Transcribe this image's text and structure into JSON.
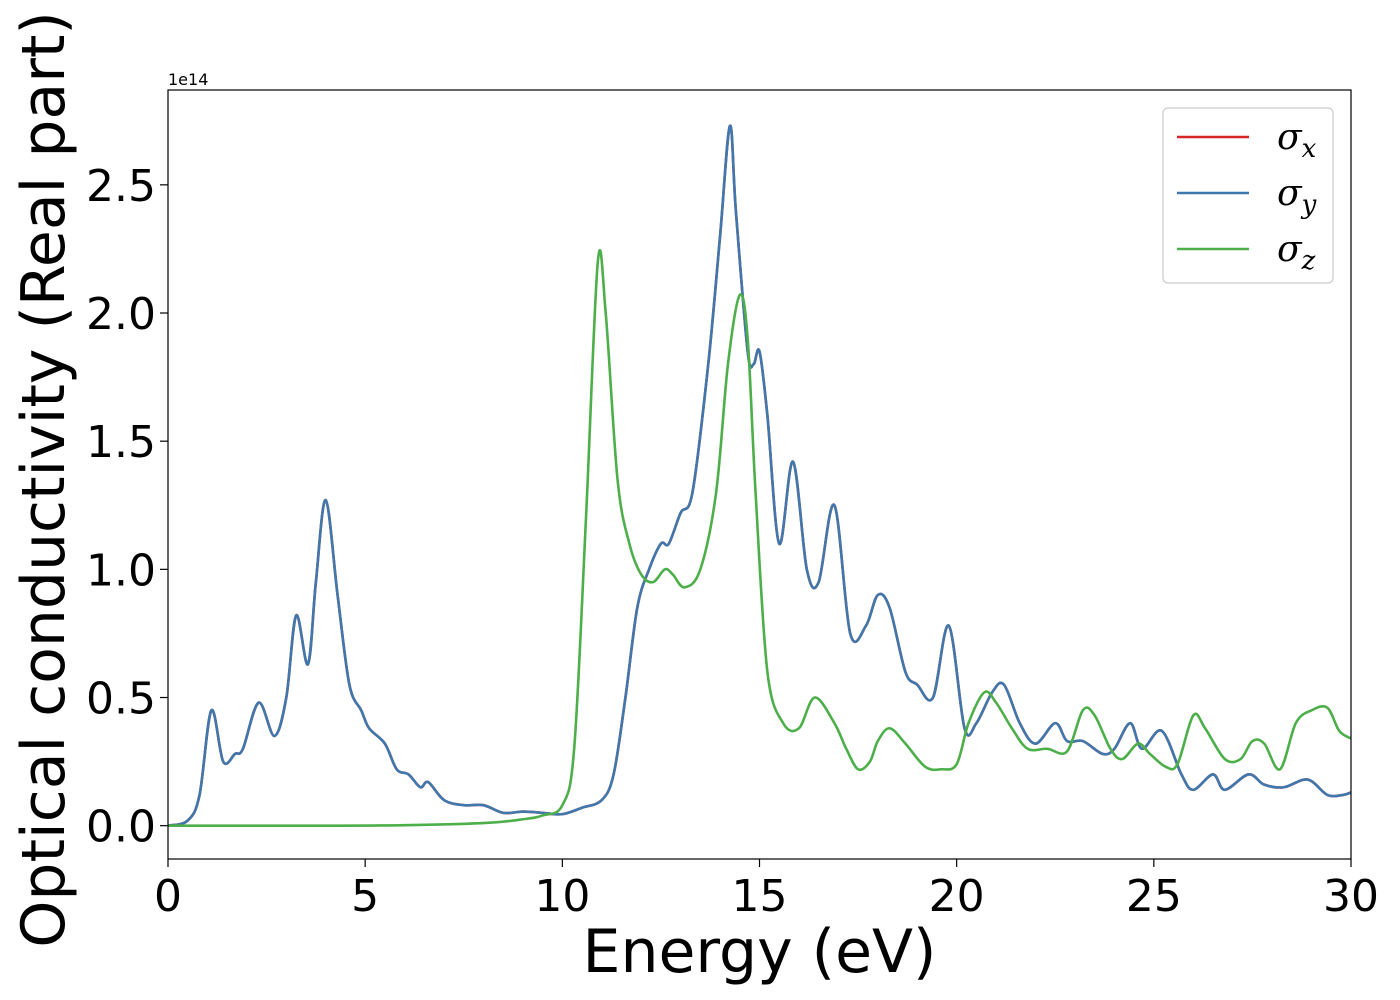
{
  "chart_data": {
    "type": "line",
    "title": "",
    "xlabel": "Energy (eV)",
    "ylabel": "Optical conductivity (Real part)",
    "y_offset_text": "1e14",
    "xlim": [
      0,
      30
    ],
    "ylim": [
      -0.13,
      2.87
    ],
    "xticks": [
      0,
      5,
      10,
      15,
      20,
      25,
      30
    ],
    "xtick_labels": [
      "0",
      "5",
      "10",
      "15",
      "20",
      "25",
      "30"
    ],
    "yticks": [
      0.0,
      0.5,
      1.0,
      1.5,
      2.0,
      2.5
    ],
    "ytick_labels": [
      "0.0",
      "0.5",
      "1.0",
      "1.5",
      "2.0",
      "2.5"
    ],
    "grid": false,
    "legend_position": "top-right",
    "series": [
      {
        "name": "σx",
        "legend_base": "σ",
        "legend_sub": "x",
        "color": "#d62728",
        "x": [
          0,
          0.5,
          0.8,
          1.1,
          1.4,
          1.7,
          1.9,
          2.3,
          2.7,
          3.0,
          3.25,
          3.55,
          3.75,
          4.0,
          4.3,
          4.6,
          4.9,
          5.1,
          5.5,
          5.8,
          6.1,
          6.4,
          6.6,
          7.0,
          7.5,
          8.0,
          8.5,
          9.0,
          9.5,
          10.0,
          10.5,
          11.0,
          11.3,
          11.6,
          11.9,
          12.2,
          12.5,
          12.7,
          13.0,
          13.3,
          13.7,
          14.0,
          14.25,
          14.4,
          14.7,
          14.85,
          15.0,
          15.2,
          15.5,
          15.85,
          16.2,
          16.5,
          16.9,
          17.3,
          17.7,
          18.0,
          18.3,
          18.7,
          19.0,
          19.4,
          19.8,
          20.2,
          20.5,
          20.9,
          21.2,
          21.6,
          22.0,
          22.5,
          22.8,
          23.2,
          23.7,
          24.0,
          24.4,
          24.7,
          25.2,
          25.7,
          26.0,
          26.5,
          26.8,
          27.4,
          27.8,
          28.3,
          28.9,
          29.4,
          29.8,
          30.0
        ],
        "y": [
          0.0,
          0.02,
          0.12,
          0.45,
          0.25,
          0.28,
          0.3,
          0.48,
          0.35,
          0.5,
          0.82,
          0.63,
          0.95,
          1.27,
          0.9,
          0.55,
          0.45,
          0.38,
          0.32,
          0.22,
          0.2,
          0.15,
          0.17,
          0.1,
          0.08,
          0.08,
          0.05,
          0.055,
          0.05,
          0.045,
          0.07,
          0.1,
          0.2,
          0.5,
          0.85,
          1.0,
          1.1,
          1.1,
          1.22,
          1.3,
          1.8,
          2.3,
          2.73,
          2.4,
          1.85,
          1.8,
          1.85,
          1.6,
          1.1,
          1.42,
          1.0,
          0.95,
          1.25,
          0.75,
          0.78,
          0.9,
          0.85,
          0.6,
          0.55,
          0.5,
          0.78,
          0.38,
          0.4,
          0.52,
          0.55,
          0.4,
          0.32,
          0.4,
          0.33,
          0.33,
          0.28,
          0.3,
          0.4,
          0.3,
          0.37,
          0.2,
          0.14,
          0.2,
          0.14,
          0.2,
          0.16,
          0.15,
          0.18,
          0.12,
          0.12,
          0.13
        ]
      },
      {
        "name": "σy",
        "legend_base": "σ",
        "legend_sub": "y",
        "color": "#3f78ac",
        "x": [
          0,
          0.5,
          0.8,
          1.1,
          1.4,
          1.7,
          1.9,
          2.3,
          2.7,
          3.0,
          3.25,
          3.55,
          3.75,
          4.0,
          4.3,
          4.6,
          4.9,
          5.1,
          5.5,
          5.8,
          6.1,
          6.4,
          6.6,
          7.0,
          7.5,
          8.0,
          8.5,
          9.0,
          9.5,
          10.0,
          10.5,
          11.0,
          11.3,
          11.6,
          11.9,
          12.2,
          12.5,
          12.7,
          13.0,
          13.3,
          13.7,
          14.0,
          14.25,
          14.4,
          14.7,
          14.85,
          15.0,
          15.2,
          15.5,
          15.85,
          16.2,
          16.5,
          16.9,
          17.3,
          17.7,
          18.0,
          18.3,
          18.7,
          19.0,
          19.4,
          19.8,
          20.2,
          20.5,
          20.9,
          21.2,
          21.6,
          22.0,
          22.5,
          22.8,
          23.2,
          23.7,
          24.0,
          24.4,
          24.7,
          25.2,
          25.7,
          26.0,
          26.5,
          26.8,
          27.4,
          27.8,
          28.3,
          28.9,
          29.4,
          29.8,
          30.0
        ],
        "y": [
          0.0,
          0.02,
          0.12,
          0.45,
          0.25,
          0.28,
          0.3,
          0.48,
          0.35,
          0.5,
          0.82,
          0.63,
          0.95,
          1.27,
          0.9,
          0.55,
          0.45,
          0.38,
          0.32,
          0.22,
          0.2,
          0.15,
          0.17,
          0.1,
          0.08,
          0.08,
          0.05,
          0.055,
          0.05,
          0.045,
          0.07,
          0.1,
          0.2,
          0.5,
          0.85,
          1.0,
          1.1,
          1.1,
          1.22,
          1.3,
          1.8,
          2.3,
          2.73,
          2.4,
          1.85,
          1.8,
          1.85,
          1.6,
          1.1,
          1.42,
          1.0,
          0.95,
          1.25,
          0.75,
          0.78,
          0.9,
          0.85,
          0.6,
          0.55,
          0.5,
          0.78,
          0.38,
          0.4,
          0.52,
          0.55,
          0.4,
          0.32,
          0.4,
          0.33,
          0.33,
          0.28,
          0.3,
          0.4,
          0.3,
          0.37,
          0.2,
          0.14,
          0.2,
          0.14,
          0.2,
          0.16,
          0.15,
          0.18,
          0.12,
          0.12,
          0.13
        ]
      },
      {
        "name": "σz",
        "legend_base": "σ",
        "legend_sub": "z",
        "color": "#4daf4a",
        "x": [
          0,
          2,
          4,
          6,
          8,
          9,
          9.5,
          10.0,
          10.3,
          10.6,
          10.9,
          11.1,
          11.4,
          11.7,
          12.0,
          12.3,
          12.6,
          12.8,
          13.1,
          13.5,
          13.9,
          14.2,
          14.5,
          14.7,
          14.9,
          15.2,
          15.6,
          16.0,
          16.4,
          16.9,
          17.2,
          17.5,
          17.8,
          18.0,
          18.3,
          18.7,
          19.2,
          19.6,
          20.0,
          20.3,
          20.7,
          21.0,
          21.4,
          21.8,
          22.3,
          22.8,
          23.2,
          23.5,
          23.9,
          24.2,
          24.6,
          24.9,
          25.3,
          25.6,
          26.0,
          26.3,
          26.8,
          27.2,
          27.5,
          27.8,
          28.2,
          28.6,
          29.0,
          29.4,
          29.7,
          30.0
        ],
        "y": [
          0.0,
          0.0,
          0.0,
          0.002,
          0.01,
          0.025,
          0.04,
          0.08,
          0.3,
          1.2,
          2.2,
          2.0,
          1.35,
          1.1,
          0.98,
          0.95,
          1.0,
          0.98,
          0.93,
          1.0,
          1.3,
          1.8,
          2.07,
          1.9,
          1.3,
          0.6,
          0.4,
          0.38,
          0.5,
          0.4,
          0.3,
          0.22,
          0.25,
          0.33,
          0.38,
          0.32,
          0.23,
          0.22,
          0.24,
          0.4,
          0.52,
          0.48,
          0.38,
          0.3,
          0.3,
          0.29,
          0.45,
          0.43,
          0.3,
          0.26,
          0.32,
          0.28,
          0.23,
          0.24,
          0.43,
          0.38,
          0.26,
          0.26,
          0.33,
          0.32,
          0.22,
          0.4,
          0.45,
          0.46,
          0.37,
          0.34
        ]
      }
    ]
  }
}
